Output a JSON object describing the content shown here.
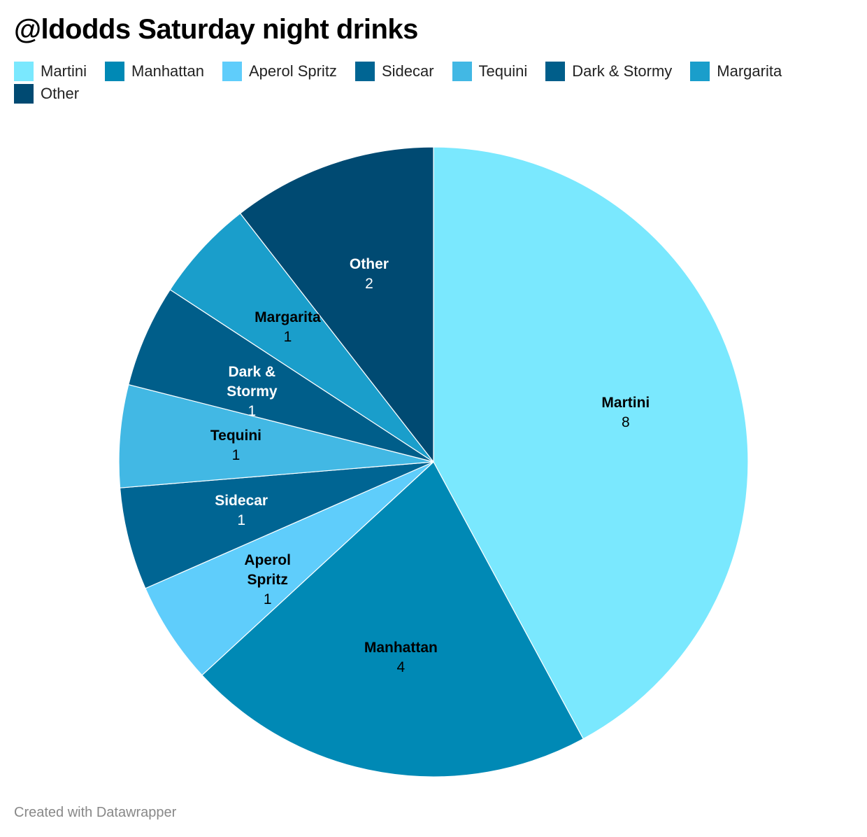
{
  "chart_data": {
    "type": "pie",
    "title": "@ldodds Saturday night drinks",
    "categories": [
      "Martini",
      "Manhattan",
      "Aperol Spritz",
      "Sidecar",
      "Tequini",
      "Dark & Stormy",
      "Margarita",
      "Other"
    ],
    "values": [
      8,
      4,
      1,
      1,
      1,
      1,
      1,
      2
    ],
    "colors": [
      "#7ae8fe",
      "#0089b5",
      "#5fcdfb",
      "#006593",
      "#42b8e4",
      "#005e8a",
      "#1a9ecb",
      "#004a72"
    ],
    "footer": "Created with Datawrapper"
  }
}
